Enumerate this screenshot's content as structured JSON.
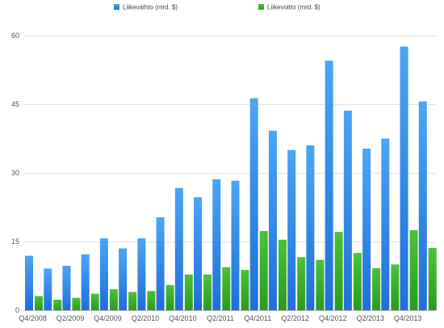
{
  "chart_data": {
    "type": "bar",
    "categories": [
      "Q4/2008",
      "Q1/2009",
      "Q2/2009",
      "Q3/2009",
      "Q4/2009",
      "Q1/2010",
      "Q2/2010",
      "Q3/2010",
      "Q4/2010",
      "Q1/2011",
      "Q2/2011",
      "Q3/2011",
      "Q4/2011",
      "Q1/2012",
      "Q2/2012",
      "Q3/2012",
      "Q4/2012",
      "Q1/2013",
      "Q2/2013",
      "Q3/2013",
      "Q4/2013",
      "Q1/2014"
    ],
    "x_tick_labels": [
      "Q4/2008",
      "Q2/2009",
      "Q4/2009",
      "Q2/2010",
      "Q4/2010",
      "Q2/2011",
      "Q4/2011",
      "Q2/2012",
      "Q4/2012",
      "Q2/2013",
      "Q4/2013"
    ],
    "series": [
      {
        "name": "Liikevaihto (mrd. $)",
        "color": "#3d8fe6",
        "values": [
          11.9,
          9.1,
          9.7,
          12.2,
          15.7,
          13.5,
          15.7,
          20.3,
          26.7,
          24.7,
          28.6,
          28.3,
          46.3,
          39.2,
          35.0,
          36.0,
          54.5,
          43.6,
          35.3,
          37.5,
          57.6,
          45.6
        ]
      },
      {
        "name": "Liikevoitto (mrd. $)",
        "color": "#3dae2b",
        "values": [
          3.1,
          2.3,
          2.7,
          3.6,
          4.6,
          4.0,
          4.2,
          5.5,
          7.8,
          7.8,
          9.4,
          8.8,
          17.3,
          15.4,
          11.6,
          11.0,
          17.1,
          12.5,
          9.2,
          10.0,
          17.5,
          13.6
        ]
      }
    ],
    "ylim": [
      0,
      60
    ],
    "y_ticks": [
      0,
      15,
      30,
      45,
      60
    ],
    "grid": true,
    "legend_position": "top-center"
  }
}
